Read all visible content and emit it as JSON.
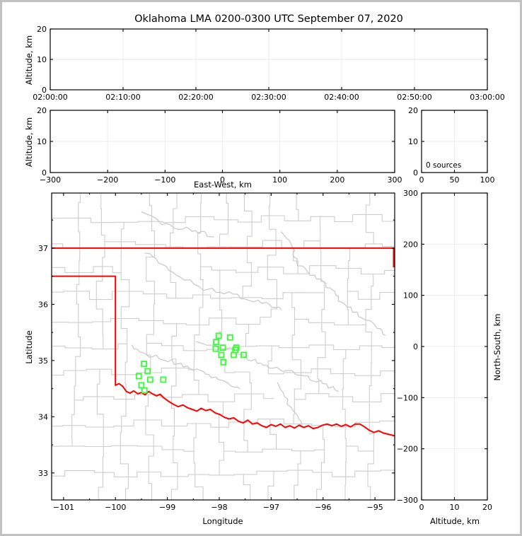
{
  "title": "Oklahoma LMA 0200-0300 UTC September 07, 2020",
  "colors": {
    "state_border": "#ff0000",
    "stations": "#33ff33",
    "counties": "#cdcdcd",
    "rivers": "#c8c8c8",
    "grid": "#ebebeb",
    "frame": "#c2c2c2",
    "axis": "#000000"
  },
  "chart_data": [
    {
      "id": "time-height",
      "type": "scatter",
      "xlabel": "",
      "ylabel": "Altitude, km",
      "xlim": [
        0,
        3600
      ],
      "ylim": [
        0,
        20
      ],
      "x_ticks": [
        0,
        600,
        1200,
        1800,
        2400,
        3000,
        3600
      ],
      "x_tick_labels": [
        "02:00:00",
        "02:10:00",
        "02:20:00",
        "02:30:00",
        "02:40:00",
        "02:50:00",
        "03:00:00"
      ],
      "y_ticks": [
        0,
        10,
        20
      ],
      "y_tick_labels": [
        "0",
        "10",
        "20"
      ],
      "grid": "light",
      "points": []
    },
    {
      "id": "east-west-height",
      "type": "scatter",
      "xlabel": "East-West, km",
      "ylabel": "Altitude, km",
      "xlim": [
        -300,
        300
      ],
      "ylim": [
        0,
        20
      ],
      "x_ticks": [
        -300,
        -200,
        -100,
        0,
        100,
        200,
        300
      ],
      "x_tick_labels": [
        "−300",
        "−200",
        "−100",
        "0",
        "100",
        "200",
        "300"
      ],
      "y_ticks": [
        0,
        10,
        20
      ],
      "y_tick_labels": [
        "0",
        "10",
        "20"
      ],
      "grid": "light",
      "points": []
    },
    {
      "id": "altitude-histogram",
      "type": "scatter",
      "annotation": "0 sources",
      "xlabel": "",
      "ylabel": "",
      "xlim": [
        0,
        100
      ],
      "ylim": [
        0,
        20
      ],
      "x_ticks": [
        0,
        50,
        100
      ],
      "x_tick_labels": [
        "0",
        "50",
        "100"
      ],
      "y_ticks": [
        0,
        10,
        20
      ],
      "y_tick_labels": [
        "0",
        "10",
        "20"
      ],
      "grid": "light",
      "points": []
    },
    {
      "id": "plan-view",
      "type": "scatter",
      "xlabel": "Longitude",
      "ylabel": "Latitude",
      "xlim": [
        -101.23,
        -94.62
      ],
      "ylim": [
        32.52,
        37.98
      ],
      "x_ticks": [
        -101,
        -100,
        -99,
        -98,
        -97,
        -96,
        -95
      ],
      "x_tick_labels": [
        "−101",
        "−100",
        "−99",
        "−98",
        "−97",
        "−96",
        "−95"
      ],
      "y_ticks": [
        33,
        34,
        35,
        36,
        37
      ],
      "y_tick_labels": [
        "33",
        "34",
        "35",
        "36",
        "37"
      ],
      "minor_step": 0.5,
      "grid": "none",
      "stations": [
        {
          "lon": -99.45,
          "lat": 34.94
        },
        {
          "lon": -99.38,
          "lat": 34.81
        },
        {
          "lon": -99.55,
          "lat": 34.72
        },
        {
          "lon": -99.33,
          "lat": 34.66
        },
        {
          "lon": -99.08,
          "lat": 34.66
        },
        {
          "lon": -99.5,
          "lat": 34.56
        },
        {
          "lon": -99.44,
          "lat": 34.47
        },
        {
          "lon": -98.01,
          "lat": 35.44
        },
        {
          "lon": -97.79,
          "lat": 35.41
        },
        {
          "lon": -98.06,
          "lat": 35.33
        },
        {
          "lon": -98.07,
          "lat": 35.21
        },
        {
          "lon": -97.93,
          "lat": 35.23
        },
        {
          "lon": -97.96,
          "lat": 35.1
        },
        {
          "lon": -97.67,
          "lat": 35.23
        },
        {
          "lon": -97.69,
          "lat": 35.19
        },
        {
          "lon": -97.72,
          "lat": 35.1
        },
        {
          "lon": -97.53,
          "lat": 35.1
        },
        {
          "lon": -97.92,
          "lat": 34.97
        }
      ],
      "state_border": [
        [
          [
            -101.23,
            37.0
          ],
          [
            -94.62,
            37.0
          ]
        ],
        [
          [
            -94.64,
            37.0
          ],
          [
            -94.64,
            36.67
          ]
        ],
        [
          [
            -101.23,
            36.5
          ],
          [
            -100.0,
            36.5
          ],
          [
            -100.0,
            34.56
          ]
        ],
        [
          [
            -100.0,
            34.56
          ],
          [
            -99.93,
            34.59
          ],
          [
            -99.86,
            34.54
          ],
          [
            -99.79,
            34.45
          ],
          [
            -99.72,
            34.42
          ],
          [
            -99.65,
            34.46
          ],
          [
            -99.57,
            34.41
          ],
          [
            -99.5,
            34.43
          ],
          [
            -99.43,
            34.39
          ],
          [
            -99.36,
            34.45
          ],
          [
            -99.29,
            34.41
          ],
          [
            -99.21,
            34.37
          ],
          [
            -99.14,
            34.4
          ],
          [
            -99.06,
            34.33
          ],
          [
            -98.97,
            34.27
          ],
          [
            -98.88,
            34.22
          ],
          [
            -98.79,
            34.18
          ],
          [
            -98.7,
            34.21
          ],
          [
            -98.61,
            34.16
          ],
          [
            -98.52,
            34.13
          ],
          [
            -98.43,
            34.1
          ],
          [
            -98.35,
            34.15
          ],
          [
            -98.26,
            34.11
          ],
          [
            -98.17,
            34.13
          ],
          [
            -98.08,
            34.07
          ],
          [
            -97.99,
            34.04
          ],
          [
            -97.9,
            33.99
          ],
          [
            -97.81,
            33.96
          ],
          [
            -97.72,
            33.98
          ],
          [
            -97.63,
            33.92
          ],
          [
            -97.54,
            33.89
          ],
          [
            -97.45,
            33.94
          ],
          [
            -97.36,
            33.87
          ],
          [
            -97.27,
            33.89
          ],
          [
            -97.18,
            33.84
          ],
          [
            -97.09,
            33.81
          ],
          [
            -97.0,
            33.86
          ],
          [
            -96.91,
            33.83
          ],
          [
            -96.82,
            33.87
          ],
          [
            -96.73,
            33.81
          ],
          [
            -96.64,
            33.84
          ],
          [
            -96.55,
            33.8
          ],
          [
            -96.46,
            33.85
          ],
          [
            -96.37,
            33.81
          ],
          [
            -96.28,
            33.84
          ],
          [
            -96.19,
            33.79
          ],
          [
            -96.1,
            33.81
          ],
          [
            -96.01,
            33.85
          ],
          [
            -95.92,
            33.87
          ],
          [
            -95.83,
            33.84
          ],
          [
            -95.74,
            33.87
          ],
          [
            -95.65,
            33.83
          ],
          [
            -95.56,
            33.86
          ],
          [
            -95.47,
            33.82
          ],
          [
            -95.38,
            33.87
          ],
          [
            -95.29,
            33.87
          ],
          [
            -95.2,
            33.82
          ],
          [
            -95.11,
            33.76
          ],
          [
            -95.02,
            33.72
          ],
          [
            -94.93,
            33.75
          ],
          [
            -94.84,
            33.71
          ],
          [
            -94.75,
            33.69
          ],
          [
            -94.66,
            33.67
          ],
          [
            -94.62,
            33.66
          ]
        ]
      ],
      "rivers": [
        [
          [
            -99.43,
            36.92
          ],
          [
            -99.1,
            36.7
          ],
          [
            -98.75,
            36.5
          ],
          [
            -98.3,
            36.28
          ],
          [
            -97.9,
            36.22
          ],
          [
            -97.5,
            36.1
          ],
          [
            -97.1,
            36.0
          ],
          [
            -96.8,
            35.9
          ]
        ],
        [
          [
            -99.7,
            35.25
          ],
          [
            -99.4,
            35.1
          ],
          [
            -99.1,
            35.05
          ],
          [
            -98.8,
            34.95
          ],
          [
            -98.5,
            34.85
          ],
          [
            -98.2,
            34.75
          ],
          [
            -97.9,
            34.6
          ],
          [
            -97.6,
            34.5
          ]
        ],
        [
          [
            -98.45,
            35.35
          ],
          [
            -98.1,
            35.28
          ],
          [
            -97.8,
            35.2
          ],
          [
            -97.5,
            35.05
          ],
          [
            -97.2,
            34.95
          ],
          [
            -96.9,
            34.85
          ],
          [
            -96.6,
            34.8
          ],
          [
            -96.3,
            34.7
          ],
          [
            -96.0,
            34.6
          ],
          [
            -95.7,
            34.45
          ]
        ],
        [
          [
            -96.8,
            37.3
          ],
          [
            -96.6,
            37.0
          ],
          [
            -96.5,
            36.75
          ],
          [
            -96.3,
            36.55
          ],
          [
            -96.0,
            36.4
          ],
          [
            -95.8,
            36.2
          ],
          [
            -95.6,
            36.0
          ],
          [
            -95.3,
            35.8
          ],
          [
            -95.0,
            35.6
          ],
          [
            -94.8,
            35.45
          ]
        ],
        [
          [
            -96.9,
            34.6
          ],
          [
            -96.7,
            34.3
          ],
          [
            -96.5,
            34.0
          ],
          [
            -96.4,
            33.8
          ]
        ],
        [
          [
            -99.5,
            37.65
          ],
          [
            -99.1,
            37.45
          ],
          [
            -98.7,
            37.35
          ],
          [
            -98.4,
            37.3
          ],
          [
            -98.1,
            37.2
          ]
        ]
      ]
    },
    {
      "id": "north-south-height",
      "type": "scatter",
      "xlabel": "Altitude, km",
      "ylabel": "North-South, km",
      "xlim": [
        0,
        20
      ],
      "ylim": [
        -300,
        300
      ],
      "x_ticks": [
        0,
        10,
        20
      ],
      "x_tick_labels": [
        "0",
        "10",
        "20"
      ],
      "y_ticks": [
        -300,
        -200,
        -100,
        0,
        100,
        200,
        300
      ],
      "y_tick_labels": [
        "−300",
        "−200",
        "−100",
        "0",
        "100",
        "200",
        "300"
      ],
      "grid": "light",
      "points": []
    }
  ]
}
